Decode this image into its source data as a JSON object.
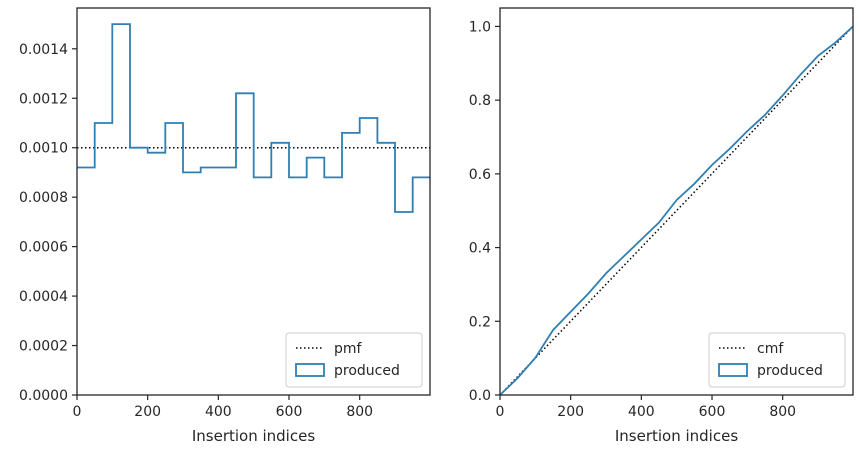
{
  "chart_data": [
    {
      "type": "step",
      "title": "",
      "xlabel": "Insertion indices",
      "ylabel": "",
      "xlim": [
        0,
        999
      ],
      "ylim": [
        0,
        0.001565
      ],
      "xticks": [
        0,
        200,
        400,
        600,
        800
      ],
      "xtick_labels": [
        "0",
        "200",
        "400",
        "600",
        "800"
      ],
      "yticks": [
        0,
        0.0002,
        0.0004,
        0.0006,
        0.0008,
        0.001,
        0.0012,
        0.0014
      ],
      "ytick_labels": [
        "0.0000",
        "0.0002",
        "0.0004",
        "0.0006",
        "0.0008",
        "0.0010",
        "0.0012",
        "0.0014"
      ],
      "legend_position": "lower-right",
      "legend": [
        "pmf",
        "produced"
      ],
      "series": [
        {
          "name": "pmf",
          "style": "dotted",
          "color": "#000000",
          "x": [
            0,
            999
          ],
          "y": [
            0.001,
            0.001
          ]
        },
        {
          "name": "produced",
          "style": "step",
          "color": "#2f7fb3",
          "bin_edges": [
            0,
            50,
            100,
            150,
            200,
            250,
            300,
            350,
            400,
            450,
            500,
            550,
            600,
            650,
            700,
            750,
            800,
            850,
            900,
            950,
            999
          ],
          "values": [
            0.00092,
            0.0011,
            0.0015,
            0.001,
            0.00098,
            0.0011,
            0.0009,
            0.00092,
            0.00092,
            0.00122,
            0.00088,
            0.00102,
            0.00088,
            0.00096,
            0.00088,
            0.00106,
            0.00112,
            0.00102,
            0.00074,
            0.00088
          ]
        }
      ]
    },
    {
      "type": "line",
      "title": "",
      "xlabel": "Insertion indices",
      "ylabel": "",
      "xlim": [
        0,
        999
      ],
      "ylim": [
        0,
        1.05
      ],
      "xticks": [
        0,
        200,
        400,
        600,
        800
      ],
      "xtick_labels": [
        "0",
        "200",
        "400",
        "600",
        "800"
      ],
      "yticks": [
        0,
        0.2,
        0.4,
        0.6,
        0.8,
        1.0
      ],
      "ytick_labels": [
        "0.0",
        "0.2",
        "0.4",
        "0.6",
        "0.8",
        "1.0"
      ],
      "legend_position": "lower-right",
      "legend": [
        "cmf",
        "produced"
      ],
      "series": [
        {
          "name": "cmf",
          "style": "dotted",
          "color": "#000000",
          "x": [
            0,
            999
          ],
          "y": [
            0,
            1.0
          ]
        },
        {
          "name": "produced",
          "style": "solid",
          "color": "#2f7fb3",
          "x": [
            0,
            50,
            100,
            150,
            200,
            250,
            300,
            350,
            400,
            450,
            500,
            550,
            600,
            650,
            700,
            750,
            800,
            850,
            900,
            950,
            999
          ],
          "y": [
            0,
            0.046,
            0.101,
            0.176,
            0.226,
            0.275,
            0.33,
            0.376,
            0.422,
            0.468,
            0.529,
            0.573,
            0.624,
            0.668,
            0.716,
            0.76,
            0.813,
            0.869,
            0.92,
            0.957,
            1.0
          ]
        }
      ]
    }
  ]
}
